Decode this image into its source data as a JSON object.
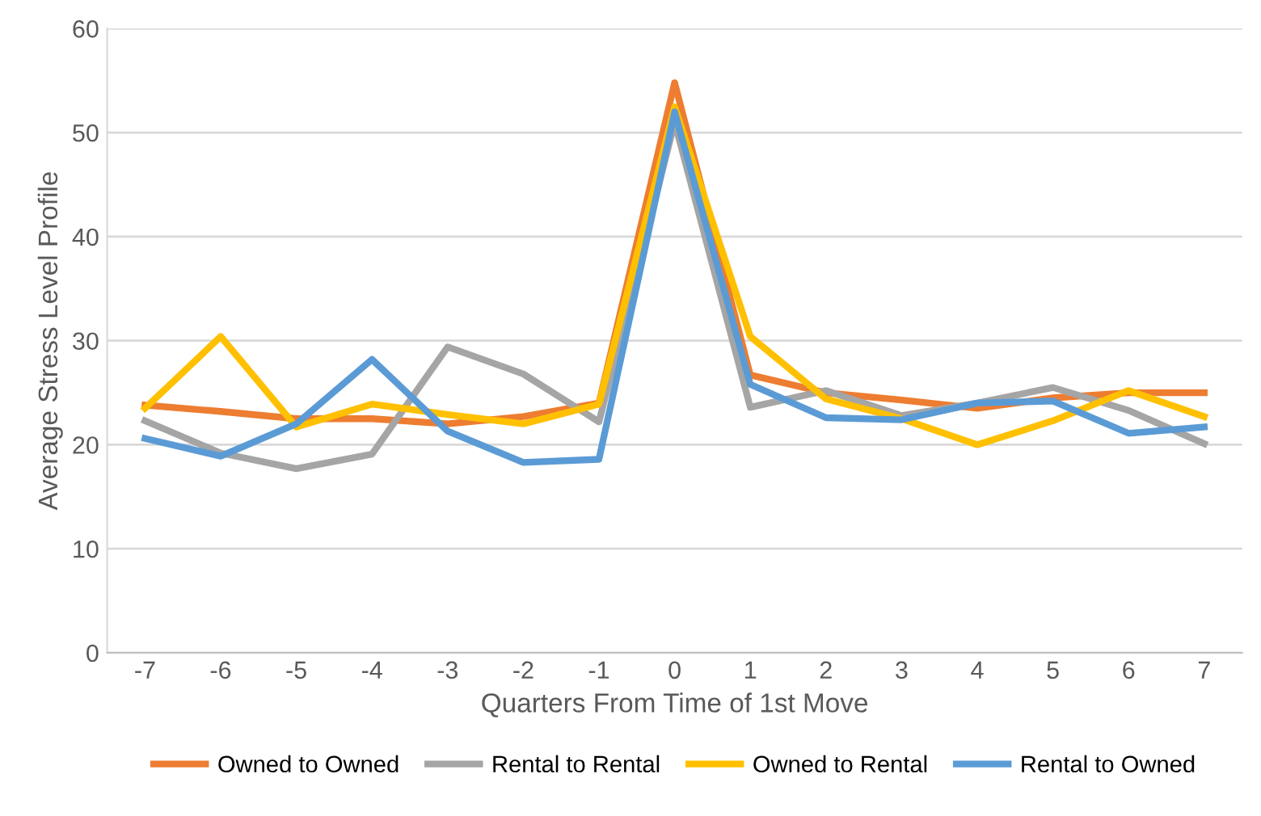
{
  "chart_data": {
    "type": "line",
    "xlabel": "Quarters From Time of 1st Move",
    "ylabel": "Average Stress Level Profile",
    "categories": [
      "-7",
      "-6",
      "-5",
      "-4",
      "-3",
      "-2",
      "-1",
      "0",
      "1",
      "2",
      "3",
      "4",
      "5",
      "6",
      "7"
    ],
    "ylim": [
      0,
      60
    ],
    "yticks": [
      0,
      10,
      20,
      30,
      40,
      50,
      60
    ],
    "grid": "y",
    "legend": "bottom",
    "marker": "none",
    "line_style": "solid",
    "series": [
      {
        "name": "Owned to Owned",
        "color": "#ed7d31",
        "values": [
          23.8,
          23.2,
          22.5,
          22.5,
          22,
          22.7,
          24,
          54.8,
          26.7,
          25,
          24.3,
          23.5,
          24.5,
          25,
          25
        ]
      },
      {
        "name": "Rental to Rental",
        "color": "#a5a5a5",
        "values": [
          22.3,
          19.2,
          17.7,
          19.1,
          29.4,
          26.8,
          22.2,
          51,
          23.6,
          25.2,
          22.8,
          24,
          25.5,
          23.3,
          20.1
        ]
      },
      {
        "name": "Owned to Rental",
        "color": "#ffc000",
        "values": [
          23.5,
          30.4,
          21.7,
          23.9,
          22.9,
          22,
          23.9,
          52.5,
          30.4,
          24.4,
          22.5,
          20,
          22.3,
          25.2,
          22.7
        ]
      },
      {
        "name": "Rental to Owned",
        "color": "#5b9bd5",
        "values": [
          20.6,
          18.9,
          22,
          28.2,
          21.3,
          18.3,
          18.6,
          52,
          25.8,
          22.6,
          22.4,
          24,
          24.2,
          21.1,
          21.7
        ]
      }
    ]
  }
}
